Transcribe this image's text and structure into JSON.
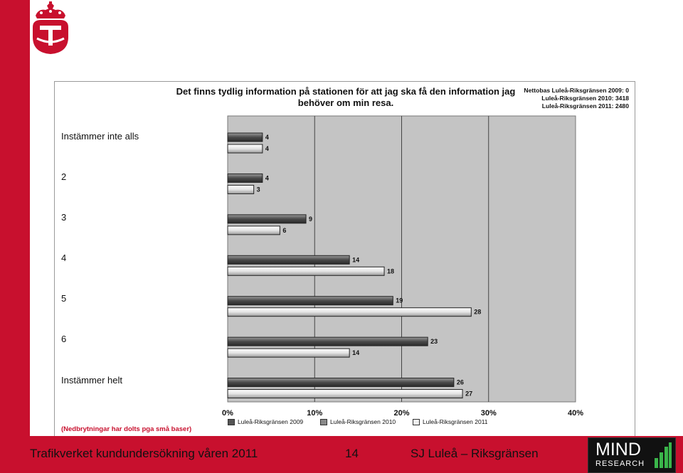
{
  "slide": {
    "footer_left": "Trafikverket kundundersökning våren 2011",
    "page_number": "14",
    "footer_right": "SJ Luleå – Riksgränsen",
    "brand_colors": {
      "red": "#c8102e",
      "footnote_red": "#c8102e"
    },
    "logo_icon": "trafikverket-crown-logo",
    "mind_logo": {
      "word": "MIND",
      "sub": "RESEARCH"
    }
  },
  "chart_data": {
    "type": "bar",
    "orientation": "horizontal",
    "title": "Det finns tydlig information på stationen för att jag ska få den information jag behöver om min resa.",
    "netto": [
      "Nettobas Luleå-Riksgränsen 2009: 0",
      "Luleå-Riksgränsen 2010: 3418",
      "Luleå-Riksgränsen 2011: 2480"
    ],
    "categories": [
      "Instämmer inte alls",
      "2",
      "3",
      "4",
      "5",
      "6",
      "Instämmer helt"
    ],
    "series": [
      {
        "name": "Luleå-Riksgränsen 2009",
        "values": [
          null,
          null,
          null,
          null,
          null,
          null,
          null
        ],
        "color": "#555555"
      },
      {
        "name": "Luleå-Riksgränsen 2010",
        "values": [
          4,
          4,
          9,
          14,
          19,
          23,
          26
        ],
        "color": "#6a6a6a"
      },
      {
        "name": "Luleå-Riksgränsen 2011",
        "values": [
          4,
          3,
          6,
          18,
          28,
          14,
          27
        ],
        "color": "#e6e6e6"
      }
    ],
    "xlim": [
      0,
      40
    ],
    "xticks": [
      "0%",
      "10%",
      "20%",
      "30%",
      "40%"
    ],
    "footnote": "(Nedbrytningar har dolts pga små baser)",
    "legend_position": "bottom",
    "grid": true
  }
}
